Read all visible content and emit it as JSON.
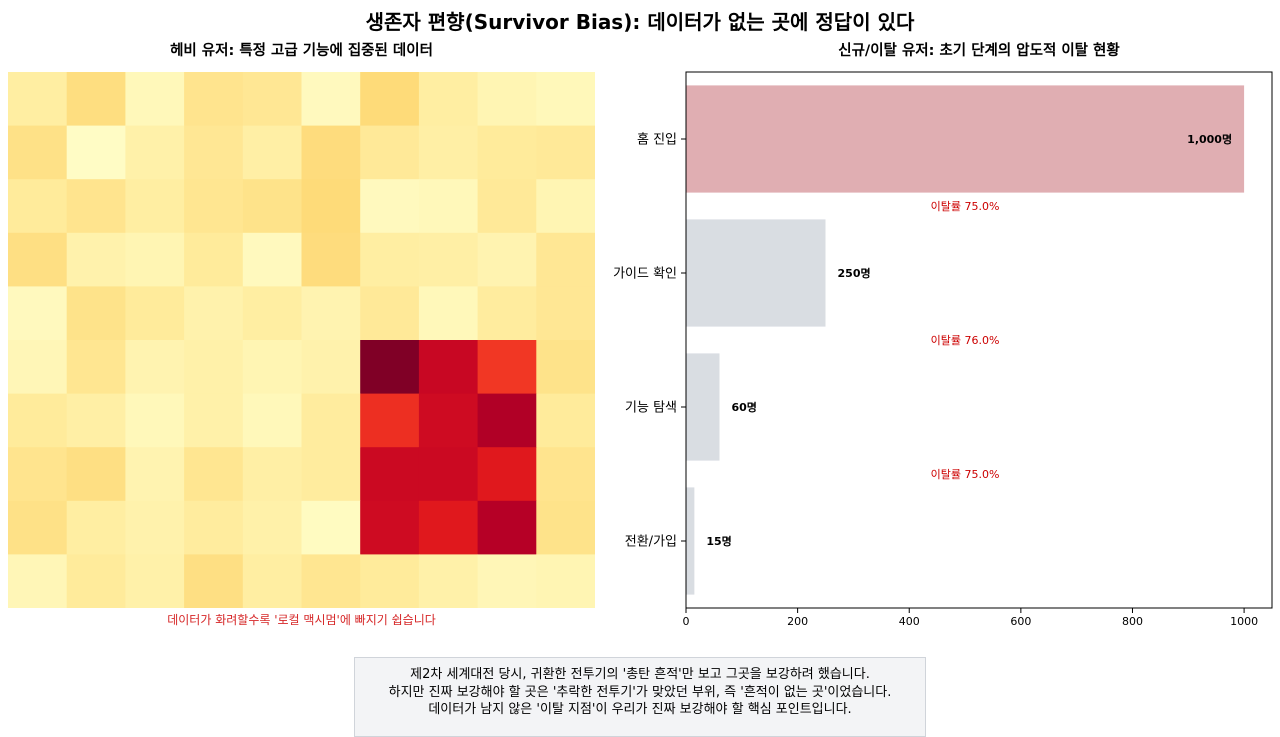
{
  "title": "생존자 편향(Survivor Bias): 데이터가 없는 곳에 정답이 있다",
  "heatmap": {
    "subtitle": "헤비 유저: 특정 고급 기능에 집중된 데이터",
    "caption": "데이터가 화려할수록 '로컬 맥시멈'에 빠지기 쉽습니다"
  },
  "story": {
    "lines": [
      "제2차 세계대전 당시, 귀환한 전투기의 '총탄 흔적'만 보고 그곳을 보강하려 했습니다.",
      "하지만 진짜 보강해야 할 곳은 '추락한 전투기'가 맞았던 부위, 즉 '흔적이 없는 곳'이었습니다.",
      "데이터가 남지 않은 '이탈 지점'이 우리가 진짜 보강해야 할 핵심 포인트입니다."
    ]
  },
  "chart_data": [
    {
      "type": "heatmap",
      "title": "헤비 유저: 특정 고급 기능에 집중된 데이터",
      "colormap": "YlOrRd",
      "rows": 10,
      "cols": 10,
      "vmin": 0,
      "vmax": 1,
      "values": [
        [
          0.12,
          0.22,
          0.05,
          0.18,
          0.16,
          0.04,
          0.24,
          0.12,
          0.07,
          0.05
        ],
        [
          0.2,
          0.02,
          0.1,
          0.16,
          0.11,
          0.23,
          0.15,
          0.11,
          0.14,
          0.15
        ],
        [
          0.14,
          0.18,
          0.12,
          0.17,
          0.19,
          0.24,
          0.04,
          0.05,
          0.15,
          0.07
        ],
        [
          0.21,
          0.09,
          0.07,
          0.14,
          0.04,
          0.23,
          0.12,
          0.11,
          0.08,
          0.16
        ],
        [
          0.04,
          0.19,
          0.14,
          0.09,
          0.12,
          0.08,
          0.15,
          0.05,
          0.13,
          0.16
        ],
        [
          0.06,
          0.17,
          0.08,
          0.1,
          0.07,
          0.09,
          1.0,
          0.84,
          0.68,
          0.19
        ],
        [
          0.14,
          0.11,
          0.05,
          0.1,
          0.05,
          0.13,
          0.7,
          0.82,
          0.9,
          0.14
        ],
        [
          0.18,
          0.21,
          0.08,
          0.17,
          0.11,
          0.13,
          0.83,
          0.83,
          0.76,
          0.18
        ],
        [
          0.2,
          0.12,
          0.09,
          0.13,
          0.1,
          0.03,
          0.82,
          0.76,
          0.89,
          0.19
        ],
        [
          0.06,
          0.14,
          0.1,
          0.21,
          0.12,
          0.17,
          0.14,
          0.1,
          0.06,
          0.07
        ]
      ]
    },
    {
      "type": "bar",
      "orientation": "horizontal",
      "title": "신규/이탈 유저: 초기 단계의 압도적 이탈 현황",
      "categories": [
        "홈 진입",
        "가이드 확인",
        "기능 탐색",
        "전환/가입"
      ],
      "values": [
        1000,
        250,
        60,
        15
      ],
      "value_labels": [
        "1,000명",
        "250명",
        "60명",
        "15명"
      ],
      "colors": [
        "#e0aeb2",
        "#d9dde2",
        "#d9dde2",
        "#d9dde2"
      ],
      "dropoff_labels": [
        "이탈률 75.0%",
        "이탈률 76.0%",
        "이탈률 75.0%"
      ],
      "dropoff_color": "#cc0000",
      "xlim": [
        0,
        1050
      ],
      "xticks": [
        0,
        200,
        400,
        600,
        800,
        1000
      ],
      "xlabel": "",
      "ylabel": "",
      "grid": false
    }
  ]
}
